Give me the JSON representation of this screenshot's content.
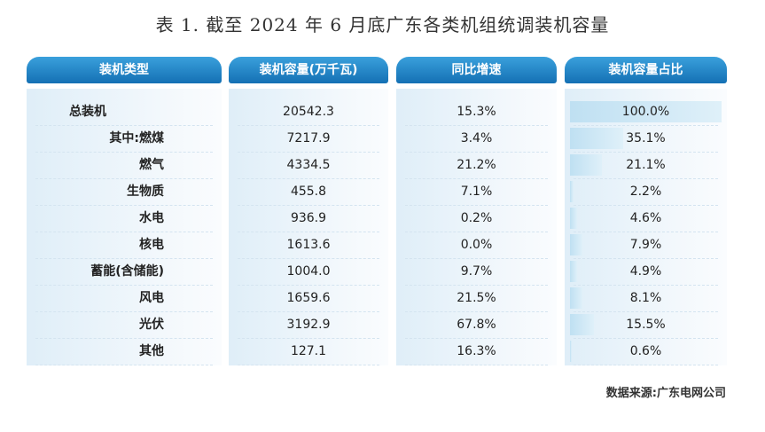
{
  "title": "表 1. 截至 2024 年 6 月底广东各类机组统调装机容量",
  "columns": [
    "装机类型",
    "装机容量(万千瓦)",
    "同比增速",
    "装机容量占比"
  ],
  "rows": [
    {
      "name": "总装机",
      "capacity": "20542.3",
      "growth": "15.3%",
      "share": {
        "value": 100.0,
        "label": "100.0%"
      }
    },
    {
      "name": "其中:燃煤",
      "capacity": "7217.9",
      "growth": "3.4%",
      "share": {
        "value": 35.1,
        "label": "35.1%"
      }
    },
    {
      "name": "燃气",
      "capacity": "4334.5",
      "growth": "21.2%",
      "share": {
        "value": 21.1,
        "label": "21.1%"
      }
    },
    {
      "name": "生物质",
      "capacity": "455.8",
      "growth": "7.1%",
      "share": {
        "value": 2.2,
        "label": "2.2%"
      }
    },
    {
      "name": "水电",
      "capacity": "936.9",
      "growth": "0.2%",
      "share": {
        "value": 4.6,
        "label": "4.6%"
      }
    },
    {
      "name": "核电",
      "capacity": "1613.6",
      "growth": "0.0%",
      "share": {
        "value": 7.9,
        "label": "7.9%"
      }
    },
    {
      "name": "蓄能(含储能)",
      "capacity": "1004.0",
      "growth": "9.7%",
      "share": {
        "value": 4.9,
        "label": "4.9%"
      }
    },
    {
      "name": "风电",
      "capacity": "1659.6",
      "growth": "21.5%",
      "share": {
        "value": 8.1,
        "label": "8.1%"
      }
    },
    {
      "name": "光伏",
      "capacity": "3192.9",
      "growth": "67.8%",
      "share": {
        "value": 15.5,
        "label": "15.5%"
      }
    },
    {
      "name": "其他",
      "capacity": "127.1",
      "growth": "16.3%",
      "share": {
        "value": 0.6,
        "label": "0.6%"
      }
    }
  ],
  "source": "数据来源:广东电网公司"
}
